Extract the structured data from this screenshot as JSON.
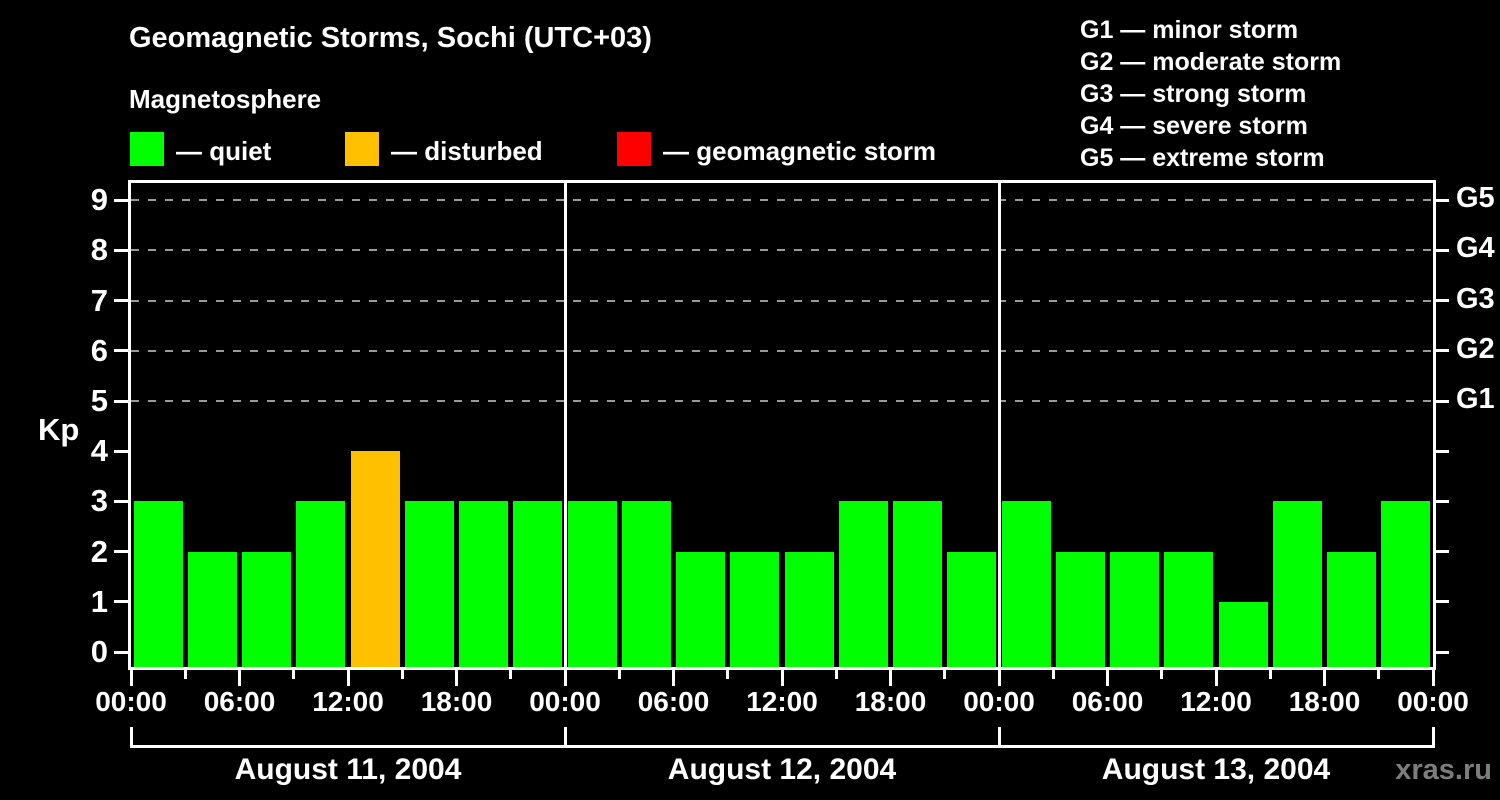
{
  "title": "Geomagnetic Storms, Sochi (UTC+03)",
  "subtitle": "Magnetosphere",
  "watermark": "xras.ru",
  "legend": {
    "items": [
      {
        "status": "quiet",
        "color": "#00ff00",
        "label": "— quiet"
      },
      {
        "status": "disturbed",
        "color": "#ffc000",
        "label": "— disturbed"
      },
      {
        "status": "storm",
        "color": "#ff0000",
        "label": "— geomagnetic storm"
      }
    ]
  },
  "storm_scale": [
    "G1 — minor storm",
    "G2 — moderate storm",
    "G3 — strong storm",
    "G4 — severe storm",
    "G5 — extreme storm"
  ],
  "chart_data": {
    "type": "bar",
    "title": "Geomagnetic Storms, Sochi (UTC+03)",
    "xlabel": "",
    "ylabel": "Kp",
    "ylim": [
      0,
      9
    ],
    "y_ticks": [
      0,
      1,
      2,
      3,
      4,
      5,
      6,
      7,
      8,
      9
    ],
    "gridline_values": [
      5,
      6,
      7,
      8,
      9
    ],
    "grid": "dashed horizontal at Kp 5-9",
    "legend_position": "top",
    "right_axis_labels": [
      {
        "value": 5,
        "label": "G1"
      },
      {
        "value": 6,
        "label": "G2"
      },
      {
        "value": 7,
        "label": "G3"
      },
      {
        "value": 8,
        "label": "G4"
      },
      {
        "value": 9,
        "label": "G5"
      }
    ],
    "bar_interval_hours": 3,
    "x_tick_labels": [
      "00:00",
      "06:00",
      "12:00",
      "18:00",
      "00:00",
      "06:00",
      "12:00",
      "18:00",
      "00:00",
      "06:00",
      "12:00",
      "18:00",
      "00:00"
    ],
    "days": [
      {
        "date": "August 11, 2004",
        "values": [
          3,
          2,
          2,
          3,
          4,
          3,
          3,
          3
        ]
      },
      {
        "date": "August 12, 2004",
        "values": [
          3,
          3,
          2,
          2,
          2,
          3,
          3,
          2
        ]
      },
      {
        "date": "August 13, 2004",
        "values": [
          3,
          2,
          2,
          2,
          1,
          3,
          2,
          3
        ]
      }
    ],
    "color_rule": {
      "quiet_max_kp": 3,
      "disturbed_kp": 4,
      "storm_min_kp": 5
    }
  }
}
